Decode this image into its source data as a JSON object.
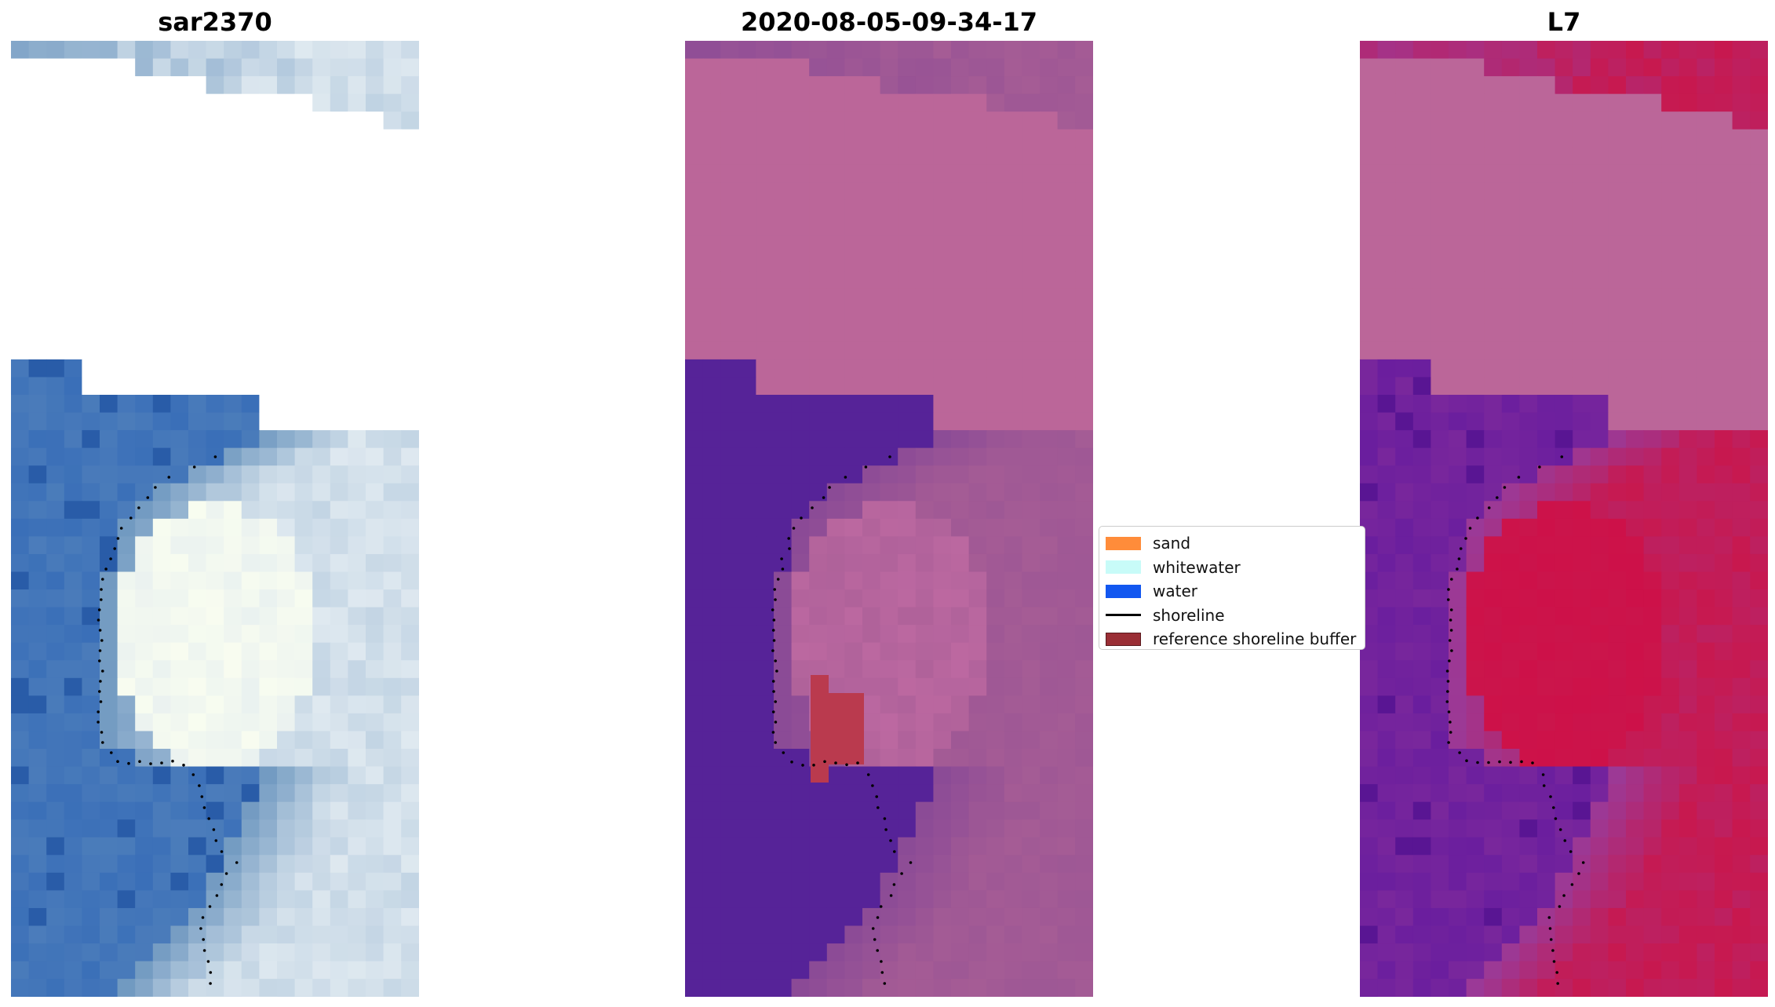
{
  "panels": [
    {
      "title": "sar2370",
      "colors": {
        "nodata": "#ffffff",
        "water": "#3a6fb8",
        "shallow": "#6f98c0",
        "land": "#dfe9f0",
        "peak": "#fbfff0",
        "dark": "#1e4f9e"
      }
    },
    {
      "title": "2020-08-05-09-34-17",
      "colors": {
        "nodata": "#bb6699",
        "water": "#562398",
        "shallow": "#8a4a96",
        "land": "#a55c95",
        "peak": "#bf6aa2",
        "buffer": "#ba3a4e"
      }
    },
    {
      "title": "L7",
      "colors": {
        "nodata": "#bb6699",
        "water": "#6a1e9e",
        "shallow": "#9a3a98",
        "land": "#c8184e",
        "peak": "#ce1048",
        "dark": "#4e0f8c"
      }
    }
  ],
  "legend": {
    "items": [
      {
        "label": "sand",
        "color": "#ff8c3a",
        "kind": "patch"
      },
      {
        "label": "whitewater",
        "color": "#c8fbf8",
        "kind": "patch"
      },
      {
        "label": "water",
        "color": "#1257f0",
        "kind": "patch"
      },
      {
        "label": "shoreline",
        "color": "#000000",
        "kind": "line"
      },
      {
        "label": "reference shoreline buffer",
        "color": "#9a2e35",
        "kind": "patch"
      }
    ]
  }
}
